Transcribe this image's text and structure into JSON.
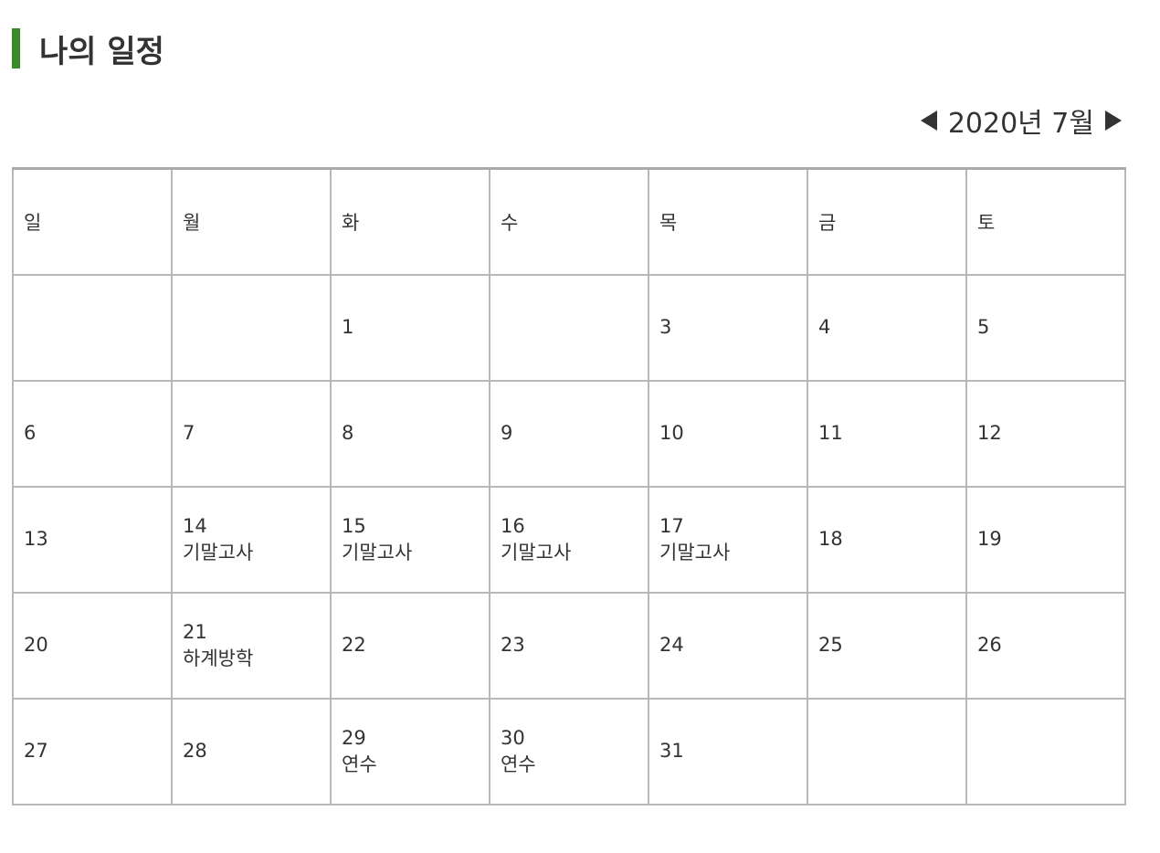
{
  "header": {
    "title": "나의 일정",
    "accent_color": "#3a8a2a"
  },
  "nav": {
    "prev_icon": "triangle-left-icon",
    "month_label": "2020년 7월",
    "next_icon": "triangle-right-icon"
  },
  "calendar": {
    "weekdays": [
      "일",
      "월",
      "화",
      "수",
      "목",
      "금",
      "토"
    ],
    "weeks": [
      [
        {
          "day": ""
        },
        {
          "day": ""
        },
        {
          "day": "1"
        },
        {
          "day": ""
        },
        {
          "day": "3"
        },
        {
          "day": "4"
        },
        {
          "day": "5"
        }
      ],
      [
        {
          "day": "6"
        },
        {
          "day": "7"
        },
        {
          "day": "8"
        },
        {
          "day": "9"
        },
        {
          "day": "10"
        },
        {
          "day": "11"
        },
        {
          "day": "12"
        }
      ],
      [
        {
          "day": "13"
        },
        {
          "day": "14",
          "event": "기말고사"
        },
        {
          "day": "15",
          "event": "기말고사"
        },
        {
          "day": "16",
          "event": "기말고사"
        },
        {
          "day": "17",
          "event": "기말고사"
        },
        {
          "day": "18"
        },
        {
          "day": "19"
        }
      ],
      [
        {
          "day": "20"
        },
        {
          "day": "21",
          "event": "하계방학"
        },
        {
          "day": "22"
        },
        {
          "day": "23"
        },
        {
          "day": "24"
        },
        {
          "day": "25"
        },
        {
          "day": "26"
        }
      ],
      [
        {
          "day": "27"
        },
        {
          "day": "28"
        },
        {
          "day": "29",
          "event": "연수"
        },
        {
          "day": "30",
          "event": "연수"
        },
        {
          "day": "31"
        },
        {
          "day": ""
        },
        {
          "day": ""
        }
      ]
    ]
  }
}
